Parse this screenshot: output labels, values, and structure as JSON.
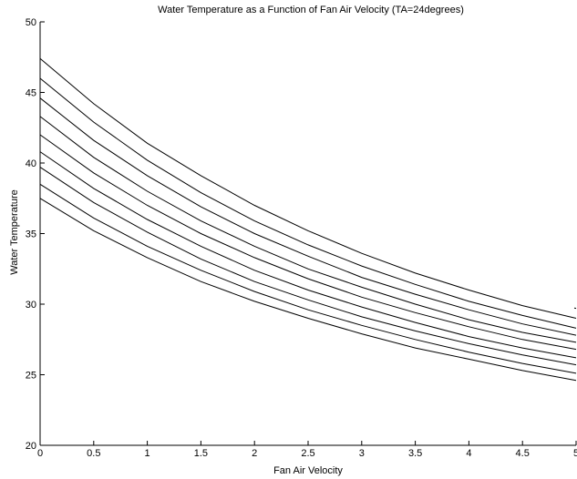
{
  "chart_data": {
    "type": "line",
    "title": "Water Temperature as a Function of Fan Air Velocity (TA=24degrees)",
    "xlabel": "Fan Air Velocity",
    "ylabel": "Water Temperature",
    "xlim": [
      0,
      5
    ],
    "ylim": [
      20,
      50
    ],
    "xticks": [
      0,
      0.5,
      1,
      1.5,
      2,
      2.5,
      3,
      3.5,
      4,
      4.5,
      5
    ],
    "xtick_labels": [
      "0",
      "0.5",
      "1",
      "1.5",
      "2",
      "2.5",
      "3",
      "3.5",
      "4",
      "4.5",
      "5"
    ],
    "yticks": [
      20,
      25,
      30,
      35,
      40,
      45,
      50
    ],
    "ytick_labels": [
      "20",
      "25",
      "30",
      "35",
      "40",
      "45",
      "50"
    ],
    "grid": false,
    "line_color": "#000000",
    "x": [
      0,
      0.5,
      1,
      1.5,
      2,
      2.5,
      3,
      3.5,
      4,
      4.5,
      5
    ],
    "series": [
      {
        "values": [
          37.5,
          35.2,
          33.3,
          31.6,
          30.2,
          29.0,
          27.9,
          26.9,
          26.1,
          25.3,
          24.6
        ]
      },
      {
        "values": [
          38.5,
          36.1,
          34.1,
          32.4,
          30.9,
          29.6,
          28.5,
          27.5,
          26.6,
          25.8,
          25.1
        ]
      },
      {
        "values": [
          39.7,
          37.2,
          35.1,
          33.2,
          31.6,
          30.3,
          29.1,
          28.1,
          27.2,
          26.4,
          25.7
        ]
      },
      {
        "values": [
          40.8,
          38.2,
          36.0,
          34.1,
          32.4,
          31.0,
          29.8,
          28.7,
          27.7,
          26.9,
          26.2
        ]
      },
      {
        "values": [
          42.0,
          39.3,
          37.0,
          35.0,
          33.3,
          31.8,
          30.5,
          29.4,
          28.4,
          27.5,
          26.8
        ]
      },
      {
        "values": [
          43.3,
          40.4,
          38.0,
          35.9,
          34.1,
          32.5,
          31.2,
          30.0,
          28.9,
          28.0,
          27.3
        ]
      },
      {
        "values": [
          44.6,
          41.6,
          39.1,
          36.9,
          35.0,
          33.4,
          31.9,
          30.7,
          29.6,
          28.6,
          27.8
        ]
      },
      {
        "values": [
          46.0,
          42.9,
          40.2,
          37.9,
          35.9,
          34.2,
          32.7,
          31.4,
          30.2,
          29.2,
          28.3
        ]
      },
      {
        "values": [
          47.4,
          44.2,
          41.4,
          39.1,
          37.0,
          35.2,
          33.6,
          32.2,
          31.0,
          29.9,
          29.0
        ]
      },
      {
        "values": [
          null,
          null,
          null,
          null,
          null,
          null,
          null,
          null,
          null,
          null,
          29.7
        ]
      }
    ]
  }
}
